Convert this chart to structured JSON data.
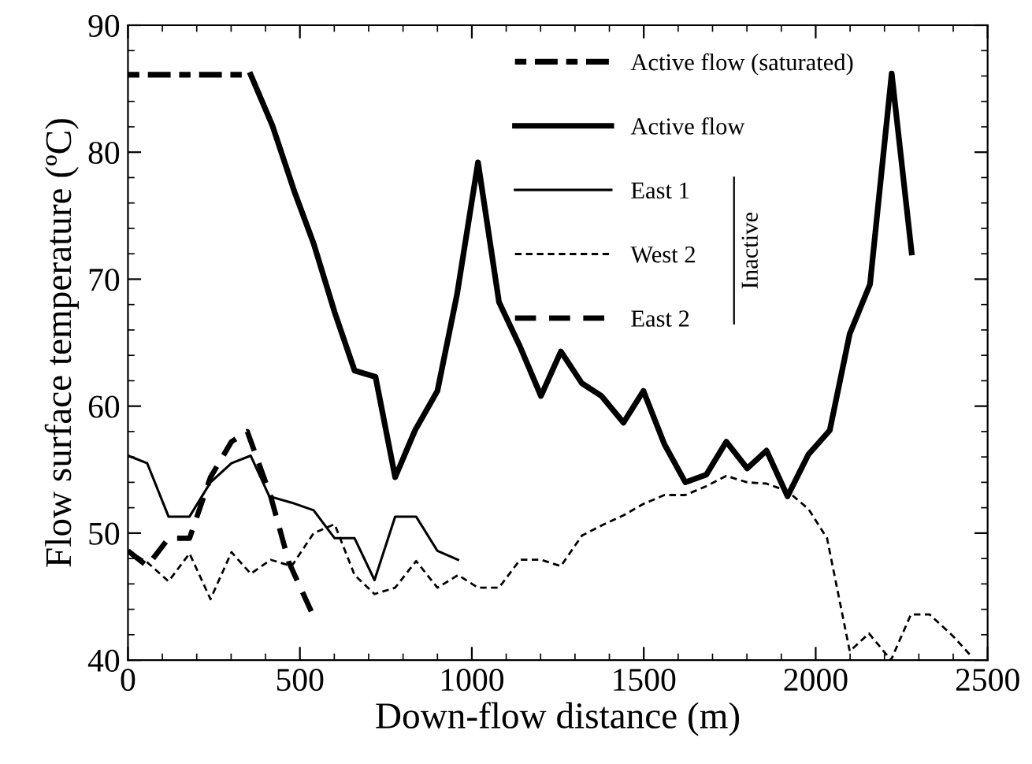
{
  "chart_data": {
    "type": "line",
    "xlabel": "Down-flow distance (m)",
    "ylabel": "Flow surface temperature (ºC)",
    "xlim": [
      0,
      2500
    ],
    "xticks": [
      0,
      500,
      1000,
      1500,
      2000,
      2500
    ],
    "ylim": [
      40,
      90
    ],
    "yticks": [
      40,
      50,
      60,
      70,
      80,
      90
    ],
    "grid": false,
    "legend": "top right",
    "marker": "none",
    "annotations": [
      "Inactive"
    ],
    "series": [
      {
        "name": "Active flow (saturated)",
        "color": "#000000",
        "line_style": "dashed",
        "x": [
          0,
          357
        ],
        "values": [
          86.1,
          86.1
        ]
      },
      {
        "name": "Active flow",
        "color": "#000000",
        "line_style": "solid",
        "x": [
          357,
          420,
          484,
          540,
          601,
          659,
          720,
          777,
          835,
          900,
          957,
          1018,
          1079,
          1140,
          1201,
          1259,
          1320,
          1377,
          1441,
          1499,
          1560,
          1621,
          1682,
          1740,
          1801,
          1857,
          1918,
          1979,
          2041,
          2099,
          2158,
          2221,
          2279
        ],
        "values": [
          86.1,
          82.1,
          76.9,
          72.8,
          67.4,
          62.8,
          62.3,
          54.4,
          58.1,
          61.2,
          68.8,
          79.2,
          68.2,
          64.7,
          60.8,
          64.3,
          61.8,
          60.8,
          58.7,
          61.2,
          57.0,
          54.0,
          54.6,
          57.2,
          55.1,
          56.5,
          52.9,
          56.2,
          58.1,
          65.7,
          69.6,
          86.2,
          72.1
        ]
      },
      {
        "name": "East 1",
        "color": "#000000",
        "line_style": "solid",
        "x": [
          0,
          56,
          118,
          179,
          240,
          301,
          357,
          411,
          476,
          540,
          601,
          659,
          717,
          777,
          838,
          900,
          960
        ],
        "values": [
          56.1,
          55.5,
          51.3,
          51.3,
          54.0,
          55.5,
          56.1,
          52.9,
          52.4,
          51.8,
          49.6,
          49.6,
          46.3,
          51.3,
          51.3,
          48.6,
          47.9
        ]
      },
      {
        "name": "West 2",
        "color": "#000000",
        "line_style": "dotted",
        "x": [
          0,
          56,
          118,
          179,
          240,
          301,
          357,
          415,
          476,
          540,
          601,
          659,
          717,
          777,
          838,
          900,
          960,
          1018,
          1079,
          1140,
          1201,
          1259,
          1320,
          1377,
          1441,
          1499,
          1560,
          1621,
          1682,
          1740,
          1801,
          1857,
          1918,
          1979,
          2033,
          2099,
          2155,
          2219,
          2277,
          2331,
          2399,
          2456
        ],
        "values": [
          48.6,
          47.7,
          46.2,
          48.4,
          44.8,
          48.5,
          46.8,
          47.9,
          47.4,
          50.0,
          50.7,
          46.7,
          45.2,
          45.7,
          47.8,
          45.7,
          46.7,
          45.7,
          45.7,
          47.9,
          47.9,
          47.4,
          49.8,
          50.6,
          51.4,
          52.3,
          53.0,
          53.0,
          53.7,
          54.5,
          54.0,
          53.9,
          53.3,
          51.9,
          49.6,
          40.7,
          42.1,
          40.0,
          43.6,
          43.6,
          41.9,
          40.2
        ]
      },
      {
        "name": "East 2",
        "color": "#000000",
        "line_style": "dashed",
        "x": [
          0,
          56,
          118,
          179,
          240,
          301,
          347,
          415,
          468,
          537
        ],
        "values": [
          48.6,
          47.4,
          49.6,
          49.6,
          54.4,
          57.2,
          58.0,
          52.9,
          47.7,
          43.6
        ]
      }
    ]
  }
}
